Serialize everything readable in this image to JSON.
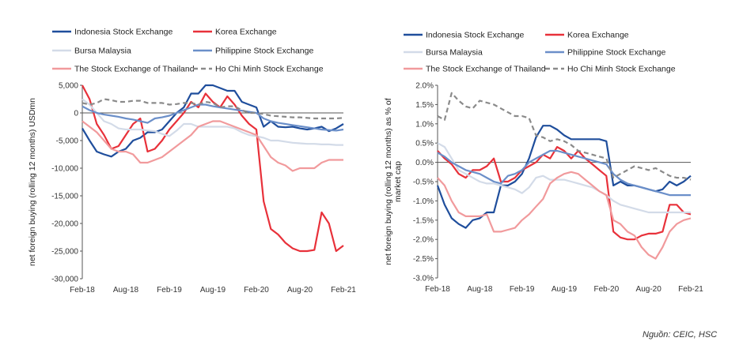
{
  "source_note": "Nguồn: CEIC, HSC",
  "chart_data": [
    {
      "type": "line",
      "id": "left",
      "ylabel": "net foreign buying (rolling 12 months) USDmn",
      "ylim": [
        -30000,
        5000
      ],
      "yticks": [
        5000,
        0,
        -5000,
        -10000,
        -15000,
        -20000,
        -25000,
        -30000
      ],
      "ytick_labels": [
        "5,000",
        "0",
        "-5,000",
        "-10,000",
        "-15,000",
        "-20,000",
        "-25,000",
        "-30,000"
      ],
      "zero_line": 0,
      "x_range": [
        0,
        36
      ],
      "xticks": [
        0,
        6,
        12,
        18,
        24,
        30,
        36
      ],
      "xtick_labels": [
        "Feb-18",
        "Aug-18",
        "Feb-19",
        "Aug-19",
        "Feb-20",
        "Aug-20",
        "Feb-21"
      ],
      "legend": [
        {
          "name": "Indonesia Stock Exchange",
          "series": 0
        },
        {
          "name": "Korea Exchange",
          "series": 1
        },
        {
          "name": "Bursa Malaysia",
          "series": 2
        },
        {
          "name": "Philippine Stock Exchange",
          "series": 3
        },
        {
          "name": "The Stock Exchange of Thailand",
          "series": 4
        },
        {
          "name": "Ho Chi Minh Stock Exchange",
          "series": 5
        }
      ],
      "series": [
        {
          "name": "Indonesia Stock Exchange",
          "color": "#1f4e9c",
          "dash": "",
          "values": [
            -2800,
            -5000,
            -7000,
            -7500,
            -7900,
            -7000,
            -6500,
            -5000,
            -4500,
            -3500,
            -3500,
            -3000,
            -1500,
            0,
            1000,
            3500,
            3500,
            5000,
            5000,
            4500,
            4000,
            4000,
            2000,
            1500,
            1000,
            -2500,
            -1500,
            -2500,
            -2600,
            -2500,
            -2800,
            -3000,
            -2800,
            -2500,
            -3300,
            -2800,
            -2000
          ]
        },
        {
          "name": "Korea Exchange",
          "color": "#e8313a",
          "dash": "",
          "values": [
            5000,
            2500,
            -2000,
            -4000,
            -6500,
            -6000,
            -4000,
            -2000,
            -1000,
            -7000,
            -6500,
            -5000,
            -3000,
            -1500,
            0,
            2000,
            1000,
            3500,
            2000,
            1000,
            3000,
            1500,
            -500,
            -2000,
            -3000,
            -16000,
            -21000,
            -22000,
            -23500,
            -24500,
            -25000,
            -25000,
            -24800,
            -18000,
            -20000,
            -25000,
            -24000
          ]
        },
        {
          "name": "Bursa Malaysia",
          "color": "#d3dbe8",
          "dash": "",
          "values": [
            2500,
            1500,
            0,
            -1500,
            -2000,
            -2800,
            -3000,
            -3000,
            -3000,
            -3200,
            -3300,
            -3800,
            -4200,
            -3200,
            -2000,
            -2000,
            -2500,
            -2500,
            -2500,
            -2500,
            -2500,
            -2800,
            -3500,
            -4000,
            -4200,
            -4500,
            -5000,
            -5000,
            -5200,
            -5400,
            -5500,
            -5600,
            -5600,
            -5700,
            -5700,
            -5800,
            -5800
          ]
        },
        {
          "name": "Philippine Stock Exchange",
          "color": "#6b8fc9",
          "dash": "",
          "values": [
            1200,
            500,
            0,
            -300,
            -500,
            -700,
            -1000,
            -1200,
            -1500,
            -1800,
            -1000,
            -800,
            -500,
            0,
            500,
            1000,
            1500,
            1500,
            1200,
            1000,
            800,
            600,
            400,
            200,
            0,
            -1000,
            -1500,
            -1800,
            -2000,
            -2200,
            -2400,
            -2600,
            -2800,
            -3000,
            -3100,
            -3200,
            -3000
          ]
        },
        {
          "name": "The Stock Exchange of Thailand",
          "color": "#f19a9c",
          "dash": "",
          "values": [
            -1500,
            -2500,
            -3500,
            -5000,
            -6500,
            -7000,
            -7000,
            -7500,
            -9000,
            -9000,
            -8500,
            -8000,
            -7000,
            -6000,
            -5000,
            -4000,
            -2500,
            -2000,
            -1500,
            -1500,
            -2000,
            -2500,
            -3000,
            -3500,
            -4000,
            -6000,
            -8000,
            -9000,
            -9500,
            -10500,
            -10000,
            -10000,
            -10000,
            -9000,
            -8500,
            -8500,
            -8500
          ]
        },
        {
          "name": "Ho Chi Minh Stock Exchange",
          "color": "#8a8a8a",
          "dash": "6,4",
          "values": [
            1800,
            1500,
            1800,
            2500,
            2300,
            2000,
            2000,
            2200,
            2200,
            1800,
            1800,
            1800,
            1500,
            1600,
            1800,
            1800,
            1500,
            2000,
            1800,
            1000,
            1200,
            1200,
            500,
            0,
            0,
            -200,
            -500,
            -600,
            -700,
            -800,
            -800,
            -900,
            -1000,
            -1000,
            -1000,
            -1000,
            -900
          ]
        }
      ]
    },
    {
      "type": "line",
      "id": "right",
      "ylabel": "net foreign buying (rolling 12 months) as % of market cap",
      "ylim": [
        -3.0,
        2.0
      ],
      "yticks": [
        2.0,
        1.5,
        1.0,
        0.5,
        0.0,
        -0.5,
        -1.0,
        -1.5,
        -2.0,
        -2.5,
        -3.0
      ],
      "ytick_labels": [
        "2.0%",
        "1.5%",
        "1.0%",
        "0.5%",
        "0.0%",
        "-0.5%",
        "-1.0%",
        "-1.5%",
        "-2.0%",
        "-2.5%",
        "-3.0%"
      ],
      "zero_line": 0,
      "x_range": [
        0,
        36
      ],
      "xticks": [
        0,
        6,
        12,
        18,
        24,
        30,
        36
      ],
      "xtick_labels": [
        "Feb-18",
        "Aug-18",
        "Feb-19",
        "Aug-19",
        "Feb-20",
        "Aug-20",
        "Feb-21"
      ],
      "legend": [
        {
          "name": "Indonesia Stock Exchange",
          "series": 0
        },
        {
          "name": "Korea Exchange",
          "series": 1
        },
        {
          "name": "Bursa Malaysia",
          "series": 2
        },
        {
          "name": "Philippine Stock Exchange",
          "series": 3
        },
        {
          "name": "The Stock Exchange of Thailand",
          "series": 4
        },
        {
          "name": "Ho Chi Minh Stock Exchange",
          "series": 5
        }
      ],
      "series": [
        {
          "name": "Indonesia Stock Exchange",
          "color": "#1f4e9c",
          "dash": "",
          "values": [
            -0.6,
            -1.1,
            -1.45,
            -1.6,
            -1.7,
            -1.5,
            -1.45,
            -1.3,
            -1.3,
            -0.6,
            -0.6,
            -0.5,
            -0.3,
            0.1,
            0.65,
            0.95,
            0.95,
            0.85,
            0.7,
            0.6,
            0.6,
            0.6,
            0.6,
            0.6,
            0.55,
            -0.6,
            -0.5,
            -0.6,
            -0.6,
            -0.65,
            -0.7,
            -0.75,
            -0.7,
            -0.5,
            -0.6,
            -0.5,
            -0.35
          ]
        },
        {
          "name": "Korea Exchange",
          "color": "#e8313a",
          "dash": "",
          "values": [
            0.3,
            0.1,
            -0.05,
            -0.3,
            -0.4,
            -0.2,
            -0.2,
            -0.1,
            0.1,
            -0.5,
            -0.5,
            -0.4,
            -0.2,
            -0.1,
            0.0,
            0.2,
            0.1,
            0.4,
            0.3,
            0.1,
            0.3,
            0.1,
            -0.05,
            -0.2,
            -0.35,
            -1.8,
            -1.95,
            -2.0,
            -2.0,
            -1.9,
            -1.85,
            -1.85,
            -1.8,
            -1.1,
            -1.1,
            -1.3,
            -1.35
          ]
        },
        {
          "name": "Bursa Malaysia",
          "color": "#d3dbe8",
          "dash": "",
          "values": [
            0.5,
            0.4,
            0.1,
            -0.2,
            -0.3,
            -0.4,
            -0.5,
            -0.55,
            -0.55,
            -0.6,
            -0.65,
            -0.7,
            -0.8,
            -0.65,
            -0.4,
            -0.35,
            -0.45,
            -0.45,
            -0.45,
            -0.5,
            -0.55,
            -0.6,
            -0.65,
            -0.75,
            -0.85,
            -1.0,
            -1.1,
            -1.15,
            -1.2,
            -1.25,
            -1.3,
            -1.3,
            -1.3,
            -1.3,
            -1.3,
            -1.3,
            -1.3
          ]
        },
        {
          "name": "Philippine Stock Exchange",
          "color": "#6b8fc9",
          "dash": "",
          "values": [
            0.25,
            0.15,
            0.0,
            -0.1,
            -0.2,
            -0.25,
            -0.3,
            -0.4,
            -0.5,
            -0.55,
            -0.35,
            -0.3,
            -0.2,
            0.0,
            0.1,
            0.2,
            0.3,
            0.3,
            0.25,
            0.2,
            0.15,
            0.1,
            0.05,
            0.0,
            -0.05,
            -0.3,
            -0.45,
            -0.55,
            -0.6,
            -0.65,
            -0.7,
            -0.75,
            -0.8,
            -0.85,
            -0.85,
            -0.85,
            -0.85
          ]
        },
        {
          "name": "The Stock Exchange of Thailand",
          "color": "#f19a9c",
          "dash": "",
          "values": [
            -0.4,
            -0.6,
            -1.0,
            -1.3,
            -1.4,
            -1.4,
            -1.4,
            -1.35,
            -1.8,
            -1.8,
            -1.75,
            -1.7,
            -1.5,
            -1.35,
            -1.15,
            -0.95,
            -0.55,
            -0.4,
            -0.3,
            -0.25,
            -0.3,
            -0.45,
            -0.6,
            -0.75,
            -0.85,
            -1.5,
            -1.6,
            -1.8,
            -1.9,
            -2.2,
            -2.4,
            -2.5,
            -2.2,
            -1.8,
            -1.6,
            -1.5,
            -1.45
          ]
        },
        {
          "name": "Ho Chi Minh Stock Exchange",
          "color": "#8a8a8a",
          "dash": "6,4",
          "values": [
            1.2,
            1.1,
            1.8,
            1.6,
            1.45,
            1.4,
            1.6,
            1.55,
            1.5,
            1.4,
            1.3,
            1.2,
            1.2,
            1.15,
            0.7,
            0.65,
            0.55,
            0.6,
            0.55,
            0.45,
            0.3,
            0.25,
            0.2,
            0.15,
            0.1,
            -0.4,
            -0.3,
            -0.2,
            -0.1,
            -0.15,
            -0.2,
            -0.15,
            -0.25,
            -0.35,
            -0.4,
            -0.4,
            -0.45
          ]
        }
      ]
    }
  ]
}
